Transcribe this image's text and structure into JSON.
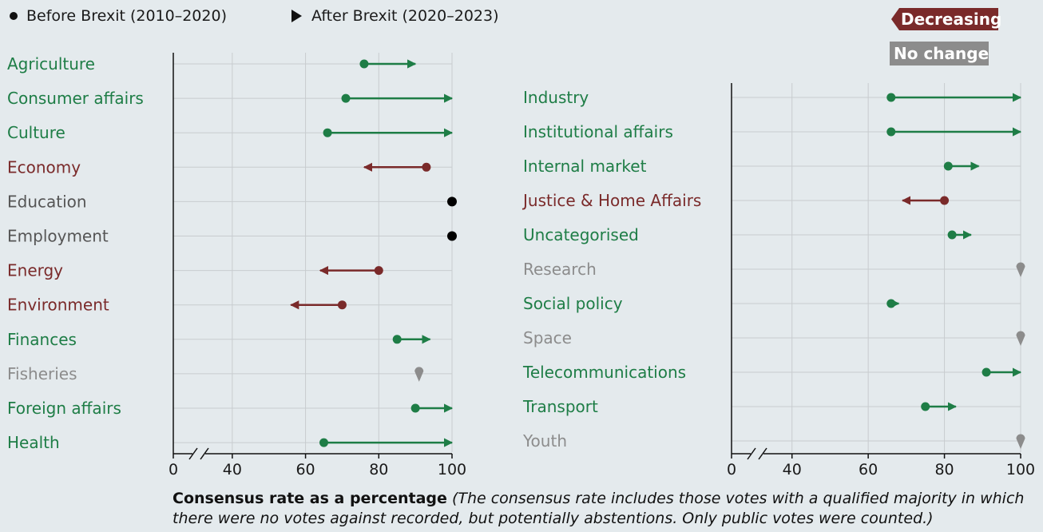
{
  "legend": {
    "before": "Before Brexit (2010–2020)",
    "after": "After Brexit (2020–2023)",
    "decreasing": "Decreasing",
    "no_change": "No change"
  },
  "colors": {
    "increasing": "#1e7d46",
    "decreasing": "#7a2a2a",
    "no_change": "#8c8c8c",
    "full": "#000000",
    "grid": "#c8cccf",
    "background": "#e4eaed"
  },
  "footnote": {
    "bold": "Consensus rate as a percentage",
    "italic": "(The consensus rate includes those votes with a qualified majority in which there were no votes against recorded, but potentially abstentions. Only public votes were counted.)"
  },
  "chart_data": [
    {
      "type": "dumbbell",
      "xlabel": "Consensus rate as a percentage",
      "xlim": [
        0,
        100
      ],
      "axis_break": [
        0,
        30
      ],
      "ticks": [
        0,
        40,
        60,
        80,
        100
      ],
      "categories": [
        "Agriculture",
        "Consumer affairs",
        "Culture",
        "Economy",
        "Education",
        "Employment",
        "Energy",
        "Environment",
        "Finances",
        "Fisheries",
        "Foreign affairs",
        "Health"
      ],
      "series": [
        {
          "name": "Before Brexit (2010–2020)",
          "values": [
            76,
            71,
            66,
            93,
            100,
            100,
            80,
            70,
            85,
            91,
            90,
            65
          ]
        },
        {
          "name": "After Brexit (2020–2023)",
          "values": [
            90,
            100,
            100,
            76,
            100,
            100,
            64,
            56,
            94,
            91,
            100,
            100
          ]
        }
      ],
      "status": [
        "increasing",
        "increasing",
        "increasing",
        "decreasing",
        "full",
        "full",
        "decreasing",
        "decreasing",
        "increasing",
        "no_change",
        "increasing",
        "increasing"
      ]
    },
    {
      "type": "dumbbell",
      "xlabel": "Consensus rate as a percentage",
      "xlim": [
        0,
        100
      ],
      "axis_break": [
        0,
        30
      ],
      "ticks": [
        0,
        40,
        60,
        80,
        100
      ],
      "categories": [
        "Industry",
        "Institutional affairs",
        "Internal market",
        "Justice & Home Affairs",
        "Uncategorised",
        "Research",
        "Social policy",
        "Space",
        "Telecommunications",
        "Transport",
        "Youth"
      ],
      "series": [
        {
          "name": "Before Brexit (2010–2020)",
          "values": [
            66,
            66,
            81,
            80,
            82,
            100,
            66,
            100,
            91,
            75,
            100
          ]
        },
        {
          "name": "After Brexit (2020–2023)",
          "values": [
            100,
            100,
            89,
            69,
            87,
            100,
            68,
            100,
            100,
            83,
            100
          ]
        }
      ],
      "status": [
        "increasing",
        "increasing",
        "increasing",
        "decreasing",
        "increasing",
        "no_change",
        "increasing",
        "no_change",
        "increasing",
        "increasing",
        "no_change"
      ]
    }
  ]
}
